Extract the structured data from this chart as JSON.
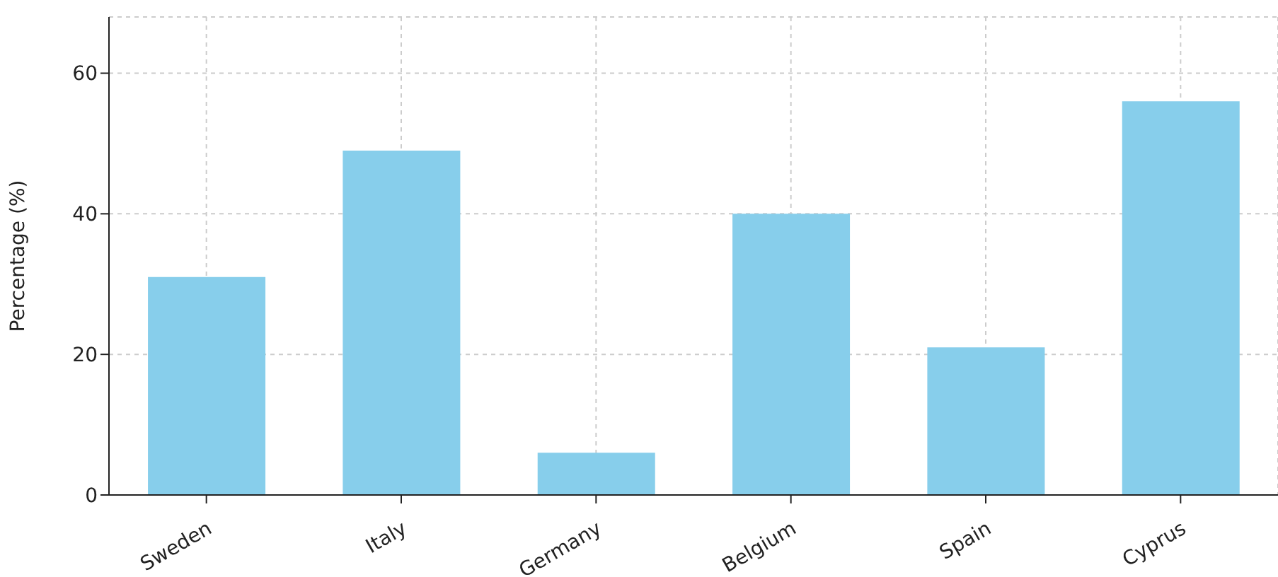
{
  "chart_data": {
    "type": "bar",
    "ylabel": "Percentage (%)",
    "categories": [
      "Sweden",
      "Italy",
      "Germany",
      "Belgium",
      "Spain",
      "Cyprus"
    ],
    "values": [
      31,
      49,
      6,
      40,
      21,
      56
    ],
    "color": "#87ceeb",
    "ylim": [
      0,
      68
    ],
    "yticks": [
      0,
      20,
      40,
      60
    ],
    "grid": true
  }
}
